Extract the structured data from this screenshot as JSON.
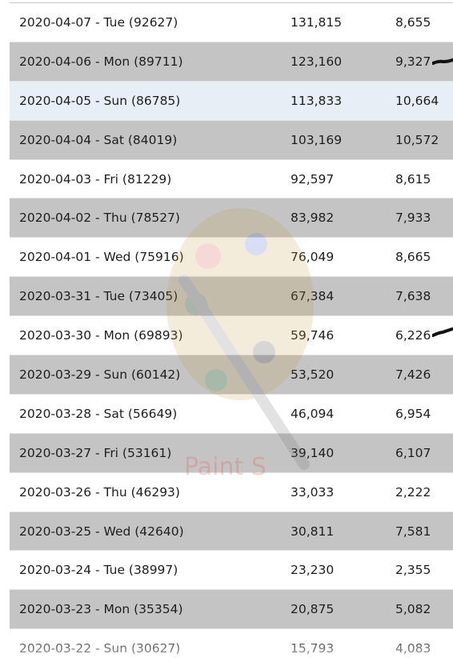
{
  "rows": [
    {
      "date": "2020-04-07 - Tue (92627)",
      "total": "131,815",
      "new": "8,655",
      "style": "odd",
      "marked": false
    },
    {
      "date": "2020-04-06 - Mon (89711)",
      "total": "123,160",
      "new": "9,327",
      "style": "even",
      "marked": true
    },
    {
      "date": "2020-04-05 - Sun (86785)",
      "total": "113,833",
      "new": "10,664",
      "style": "highlight",
      "marked": false
    },
    {
      "date": "2020-04-04 - Sat (84019)",
      "total": "103,169",
      "new": "10,572",
      "style": "even",
      "marked": false
    },
    {
      "date": "2020-04-03 - Fri (81229)",
      "total": "92,597",
      "new": "8,615",
      "style": "odd",
      "marked": false
    },
    {
      "date": "2020-04-02 - Thu (78527)",
      "total": "83,982",
      "new": "7,933",
      "style": "even",
      "marked": false
    },
    {
      "date": "2020-04-01 - Wed (75916)",
      "total": "76,049",
      "new": "8,665",
      "style": "odd",
      "marked": false
    },
    {
      "date": "2020-03-31 - Tue (73405)",
      "total": "67,384",
      "new": "7,638",
      "style": "even",
      "marked": false
    },
    {
      "date": "2020-03-30 - Mon (69893)",
      "total": "59,746",
      "new": "6,226",
      "style": "odd",
      "marked": true
    },
    {
      "date": "2020-03-29 - Sun (60142)",
      "total": "53,520",
      "new": "7,426",
      "style": "even",
      "marked": false
    },
    {
      "date": "2020-03-28 - Sat (56649)",
      "total": "46,094",
      "new": "6,954",
      "style": "odd",
      "marked": false
    },
    {
      "date": "2020-03-27 - Fri (53161)",
      "total": "39,140",
      "new": "6,107",
      "style": "even",
      "marked": false
    },
    {
      "date": "2020-03-26 - Thu (46293)",
      "total": "33,033",
      "new": "2,222",
      "style": "odd",
      "marked": false
    },
    {
      "date": "2020-03-25 - Wed (42640)",
      "total": "30,811",
      "new": "7,581",
      "style": "even",
      "marked": false
    },
    {
      "date": "2020-03-24 - Tue (38997)",
      "total": "23,230",
      "new": "2,355",
      "style": "odd",
      "marked": false
    },
    {
      "date": "2020-03-23 - Mon (35354)",
      "total": "20,875",
      "new": "5,082",
      "style": "even",
      "marked": false
    },
    {
      "date": "2020-03-22 - Sun (30627)",
      "total": "15,793",
      "new": "4,083",
      "style": "odd",
      "marked": false
    }
  ],
  "colors": {
    "row_white": "#ffffff",
    "row_gray": "#c4c4c4",
    "row_highlight": "#e7eef6",
    "text": "#1e1e1e",
    "annotation_mark": "#111111"
  },
  "watermark": {
    "label": "Paint S",
    "icon": "paint-palette-icon"
  }
}
